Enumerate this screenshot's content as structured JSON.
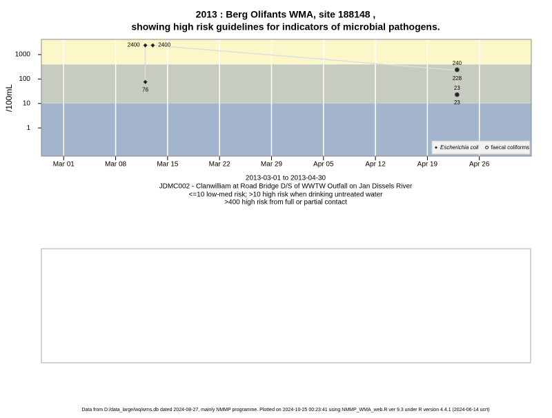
{
  "chart_data": {
    "type": "scatter",
    "title": "2013 : Berg Olifants WMA, site 188148 ,",
    "subtitle": "showing high risk guidelines for indicators of microbial pathogens.",
    "y_label": "/100mL",
    "captions": [
      "2013-03-01 to 2013-04-30",
      "JDMC002 - Clanwilliam at Road Bridge D/S of WWTW Outfall on Jan Dissels River",
      "<=10 low-med risk; >10 high risk when drinking untreated water",
      ">400 high risk from full or partial contact"
    ],
    "footer": "Data from D:/data_large/wq/wms.db dated 2024-08-27, mainly NMMP programme. Plotted on 2024-10-25 00:23:41 using NMMP_WMA_web.R ver 9.3 under R version 4.4.1 (2024-06-14 ucrt)",
    "log_y": true,
    "ylim": [
      0.07,
      4200
    ],
    "yticks": [
      1,
      10,
      100,
      1000
    ],
    "xlim": [
      "2013-02-26",
      "2013-05-03"
    ],
    "xticks": [
      {
        "value": "2013-03-01",
        "label": "Mar 01"
      },
      {
        "value": "2013-03-08",
        "label": "Mar 08"
      },
      {
        "value": "2013-03-15",
        "label": "Mar 15"
      },
      {
        "value": "2013-03-22",
        "label": "Mar 22"
      },
      {
        "value": "2013-03-29",
        "label": "Mar 29"
      },
      {
        "value": "2013-04-05",
        "label": "Apr 05"
      },
      {
        "value": "2013-04-12",
        "label": "Apr 12"
      },
      {
        "value": "2013-04-19",
        "label": "Apr 19"
      },
      {
        "value": "2013-04-26",
        "label": "Apr 26"
      }
    ],
    "grid": true,
    "thresholds": [
      10,
      400
    ],
    "band_colors": [
      "#a3b4cd",
      "#c6ccbf",
      "#fbf7c8"
    ],
    "legend": "bottom-right",
    "series": [
      {
        "name": "Escherichia coli",
        "color": "#222222",
        "marker": "diamond",
        "line_color": "#dddddd",
        "x": [
          "2013-03-12",
          "2013-03-12",
          "2013-03-13",
          "2013-04-23",
          "2013-04-23"
        ],
        "values": [
          76,
          2400,
          2400,
          228,
          23
        ]
      },
      {
        "name": "faecal coliforms",
        "color": "#222222",
        "marker": "circle",
        "x": [
          "2013-04-23",
          "2013-04-23"
        ],
        "values": [
          240,
          23
        ]
      }
    ]
  }
}
